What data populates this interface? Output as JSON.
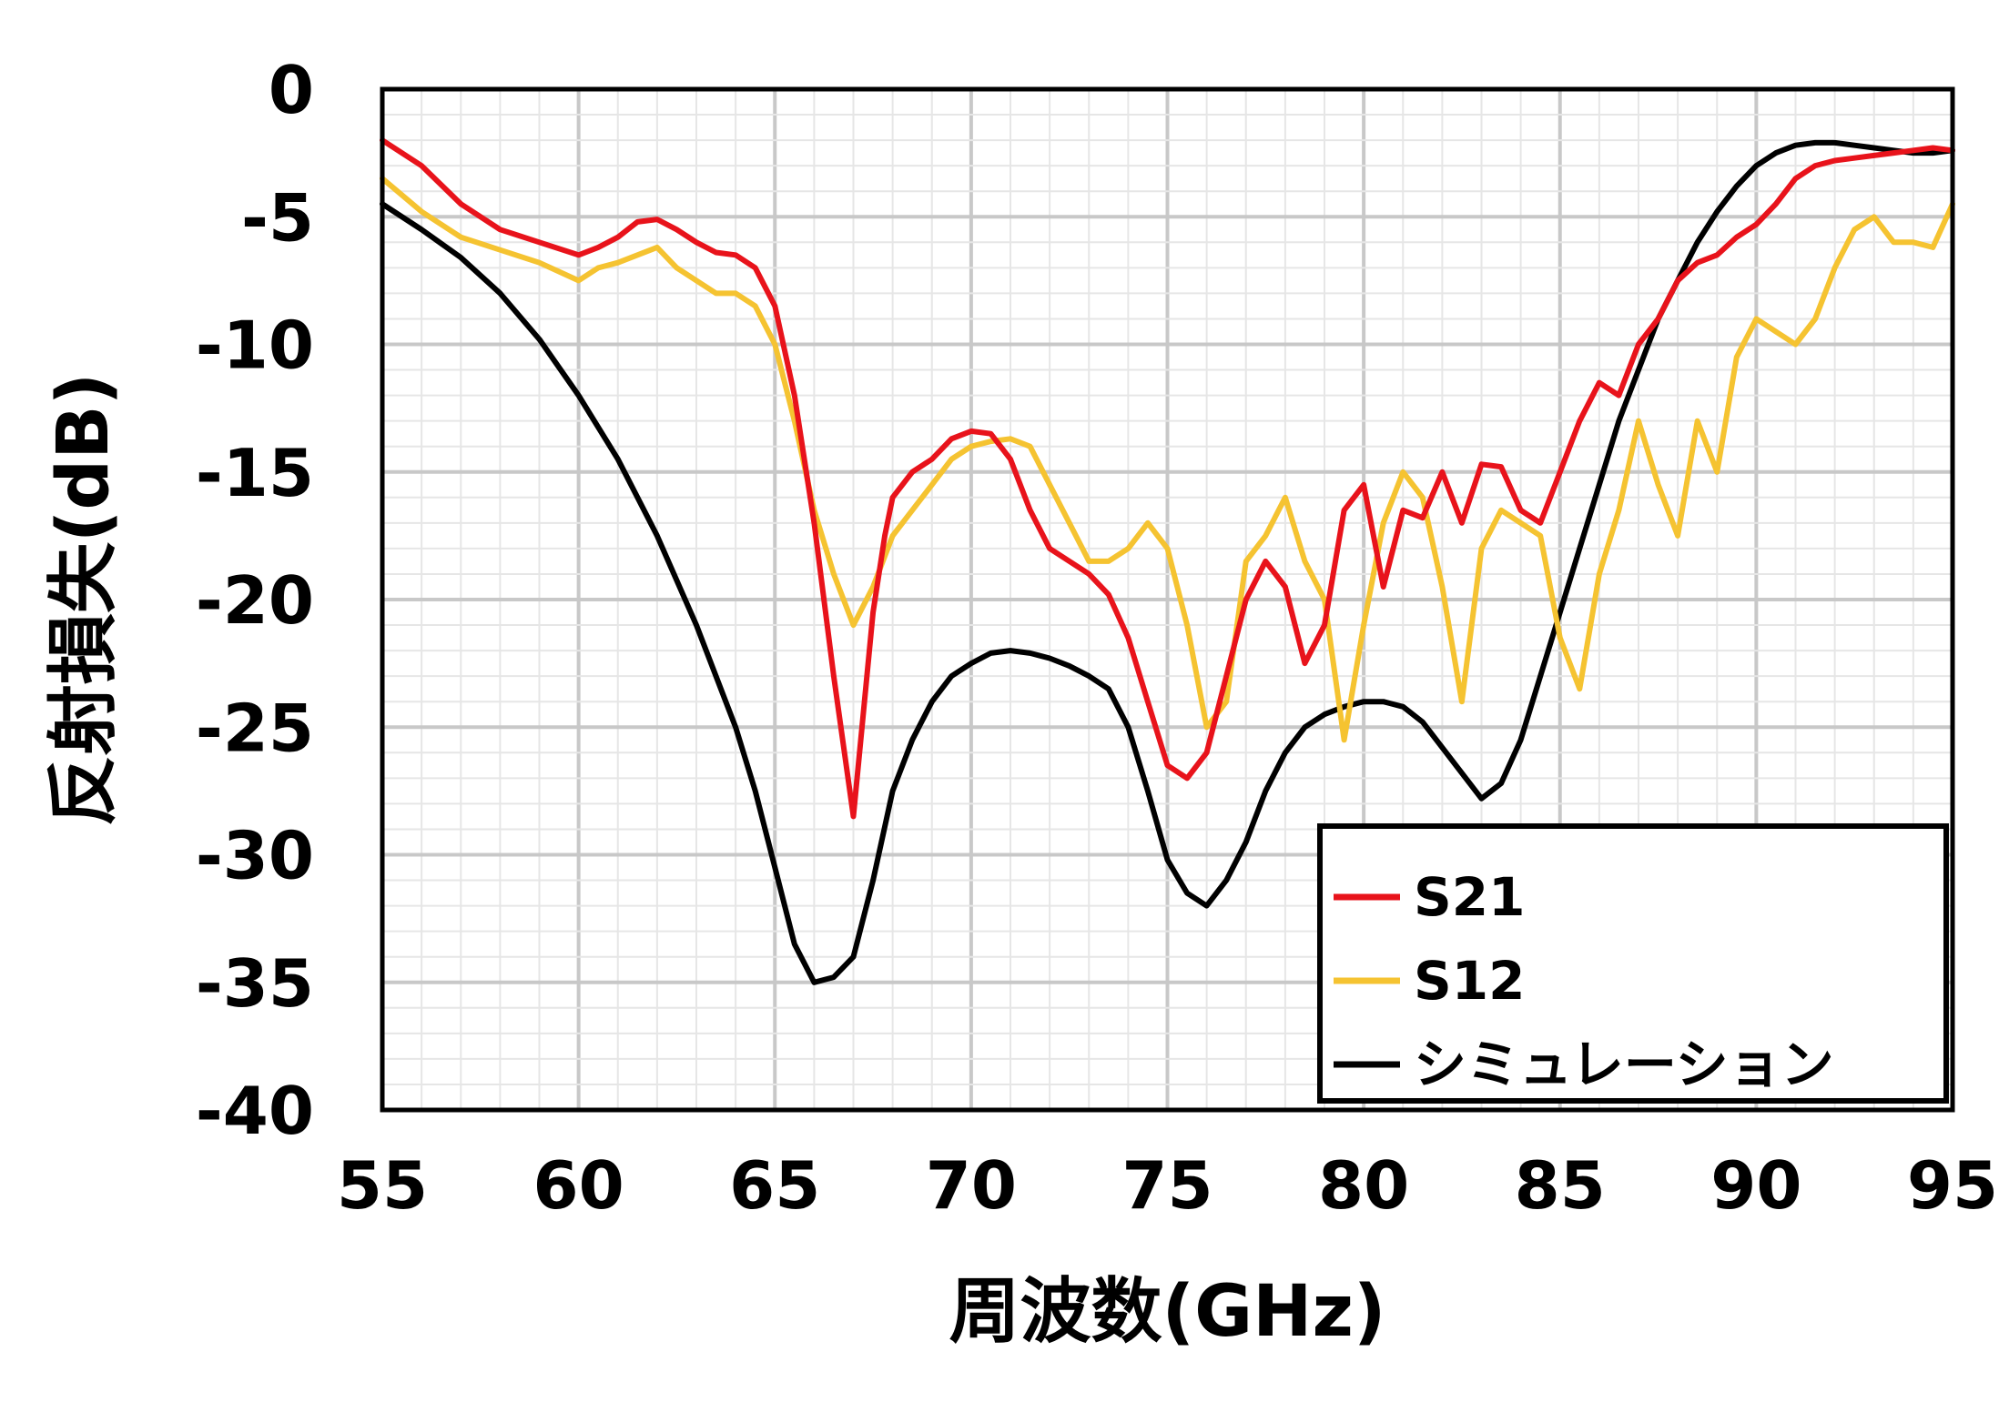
{
  "chart_data": {
    "type": "line",
    "xlabel": "周波数(GHz)",
    "ylabel": "反射損失(dB)",
    "xlim": [
      55,
      95
    ],
    "ylim": [
      -40,
      0
    ],
    "x_ticks": [
      "55",
      "60",
      "65",
      "70",
      "75",
      "80",
      "85",
      "90",
      "95"
    ],
    "y_ticks": [
      "0",
      "-5",
      "-10",
      "-15",
      "-20",
      "-25",
      "-30",
      "-35",
      "-40"
    ],
    "grid": true,
    "legend_position": "bottom-right",
    "series": [
      {
        "name": "S21",
        "color": "#e8131b",
        "x": [
          55,
          56,
          57,
          58,
          59,
          60,
          60.5,
          61,
          61.5,
          62,
          62.5,
          63,
          63.5,
          64,
          64.5,
          65,
          65.5,
          66,
          66.5,
          67,
          67.5,
          67.8,
          68,
          68.5,
          69,
          69.5,
          70,
          70.5,
          71,
          71.5,
          72,
          72.5,
          73,
          73.5,
          74,
          74.5,
          75,
          75.5,
          76,
          76.5,
          77,
          77.5,
          78,
          78.5,
          79,
          79.5,
          80,
          80.5,
          81,
          81.5,
          82,
          82.5,
          83,
          83.5,
          84,
          84.5,
          85,
          85.5,
          86,
          86.5,
          87,
          87.5,
          88,
          88.5,
          89,
          89.5,
          90,
          90.5,
          91,
          91.5,
          92,
          92.5,
          93,
          93.5,
          94,
          94.5,
          95
        ],
        "values": [
          -2,
          -3,
          -4.5,
          -5.5,
          -6,
          -6.5,
          -6.2,
          -5.8,
          -5.2,
          -5.1,
          -5.5,
          -6,
          -6.4,
          -6.5,
          -7,
          -8.5,
          -12,
          -17,
          -23,
          -28.5,
          -20.5,
          -17.5,
          -16,
          -15,
          -14.5,
          -13.7,
          -13.4,
          -13.5,
          -14.5,
          -16.5,
          -18,
          -18.5,
          -19,
          -19.8,
          -21.5,
          -24,
          -26.5,
          -27,
          -26,
          -23,
          -20,
          -18.5,
          -19.5,
          -22.5,
          -21,
          -16.5,
          -15.5,
          -19.5,
          -16.5,
          -16.8,
          -15,
          -17,
          -14.7,
          -14.8,
          -16.5,
          -17,
          -15,
          -13,
          -11.5,
          -12,
          -10,
          -9,
          -7.5,
          -6.8,
          -6.5,
          -5.8,
          -5.3,
          -4.5,
          -3.5,
          -3,
          -2.8,
          -2.7,
          -2.6,
          -2.5,
          -2.4,
          -2.3,
          -2.4
        ]
      },
      {
        "name": "S12",
        "color": "#f5c331",
        "x": [
          55,
          56,
          57,
          58,
          59,
          60,
          60.5,
          61,
          61.5,
          62,
          62.5,
          63,
          63.5,
          64,
          64.5,
          65,
          65.5,
          66,
          66.5,
          67,
          67.5,
          68,
          68.5,
          69,
          69.5,
          70,
          70.5,
          71,
          71.5,
          72,
          72.5,
          73,
          73.5,
          74,
          74.5,
          75,
          75.5,
          76,
          76.5,
          77,
          77.5,
          78,
          78.5,
          79,
          79.5,
          80,
          80.5,
          81,
          81.5,
          82,
          82.5,
          83,
          83.5,
          84,
          84.5,
          85,
          85.5,
          86,
          86.5,
          87,
          87.5,
          88,
          88.5,
          89,
          89.5,
          90,
          90.5,
          91,
          91.5,
          92,
          92.5,
          93,
          93.5,
          94,
          94.5,
          95
        ],
        "values": [
          -3.5,
          -4.8,
          -5.8,
          -6.3,
          -6.8,
          -7.5,
          -7,
          -6.8,
          -6.5,
          -6.2,
          -7,
          -7.5,
          -8,
          -8,
          -8.5,
          -10,
          -13,
          -16.5,
          -19,
          -21,
          -19.5,
          -17.5,
          -16.5,
          -15.5,
          -14.5,
          -14,
          -13.8,
          -13.7,
          -14,
          -15.5,
          -17,
          -18.5,
          -18.5,
          -18,
          -17,
          -18,
          -21,
          -25,
          -24,
          -18.5,
          -17.5,
          -16,
          -18.5,
          -20,
          -25.5,
          -21,
          -17,
          -15,
          -16,
          -19.5,
          -24,
          -18,
          -16.5,
          -17,
          -17.5,
          -21.5,
          -23.5,
          -19,
          -16.5,
          -13,
          -15.5,
          -17.5,
          -13,
          -15,
          -10.5,
          -9,
          -9.5,
          -10,
          -9,
          -7,
          -5.5,
          -5,
          -6,
          -6,
          -6.2,
          -4.5
        ]
      },
      {
        "name": "シミュレーション",
        "color": "#000000",
        "x": [
          55,
          56,
          57,
          58,
          59,
          60,
          61,
          62,
          63,
          64,
          64.5,
          65,
          65.5,
          66,
          66.5,
          67,
          67.5,
          68,
          68.5,
          69,
          69.5,
          70,
          70.5,
          71,
          71.5,
          72,
          72.5,
          73,
          73.5,
          74,
          74.5,
          75,
          75.5,
          76,
          76.5,
          77,
          77.5,
          78,
          78.5,
          79,
          79.5,
          80,
          80.5,
          81,
          81.5,
          82,
          82.5,
          83,
          83.5,
          84,
          84.5,
          85,
          85.5,
          86,
          86.5,
          87,
          87.5,
          88,
          88.5,
          89,
          89.5,
          90,
          90.5,
          91,
          91.5,
          92,
          92.5,
          93,
          93.5,
          94,
          94.5,
          95
        ],
        "values": [
          -4.5,
          -5.5,
          -6.6,
          -8,
          -9.8,
          -12,
          -14.5,
          -17.5,
          -21,
          -25,
          -27.5,
          -30.5,
          -33.5,
          -35,
          -34.8,
          -34,
          -31,
          -27.5,
          -25.5,
          -24,
          -23,
          -22.5,
          -22.1,
          -22,
          -22.1,
          -22.3,
          -22.6,
          -23,
          -23.5,
          -25,
          -27.5,
          -30.2,
          -31.5,
          -32,
          -31,
          -29.5,
          -27.5,
          -26,
          -25,
          -24.5,
          -24.2,
          -24,
          -24,
          -24.2,
          -24.8,
          -25.8,
          -26.8,
          -27.8,
          -27.2,
          -25.5,
          -23,
          -20.5,
          -18,
          -15.5,
          -13,
          -11,
          -9,
          -7.5,
          -6,
          -4.8,
          -3.8,
          -3,
          -2.5,
          -2.2,
          -2.1,
          -2.1,
          -2.2,
          -2.3,
          -2.4,
          -2.5,
          -2.5,
          -2.4
        ]
      }
    ]
  }
}
